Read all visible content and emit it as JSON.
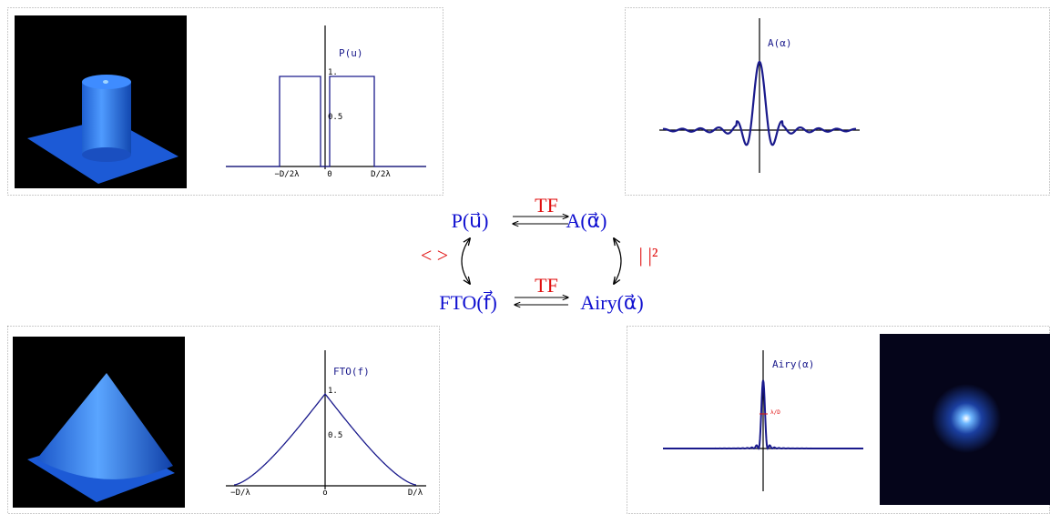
{
  "top_left": {
    "plot": {
      "title": "P(u)",
      "yticks": [
        "1.",
        "0.5"
      ],
      "xticks": [
        "−D/2λ",
        "0",
        "D/2λ"
      ]
    }
  },
  "top_right": {
    "plot": {
      "title": "A(α)"
    }
  },
  "diagram": {
    "pupil": "P(u⃗)",
    "amplitude": "A(α⃗)",
    "mtf": "FTO(f⃗)",
    "airy": "Airy(α⃗)",
    "top_arrow": "TF",
    "bottom_arrow": "TF",
    "left_arrow": "< >",
    "right_arrow": "| |²"
  },
  "bottom_left": {
    "plot": {
      "title": "FTO(f)",
      "yticks": [
        "1.",
        "0.5"
      ],
      "xticks": [
        "−D/λ",
        "o",
        "D/λ"
      ]
    }
  },
  "bottom_right": {
    "plot": {
      "title": "Airy(α)",
      "annotation": "λ/D"
    }
  }
}
